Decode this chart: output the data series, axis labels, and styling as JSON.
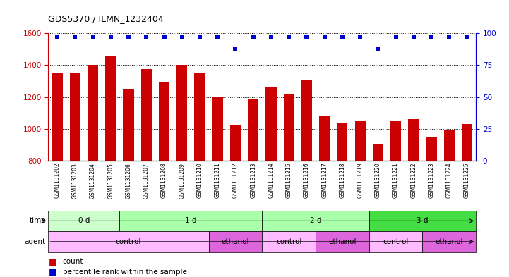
{
  "title": "GDS5370 / ILMN_1232404",
  "samples": [
    "GSM1131202",
    "GSM1131203",
    "GSM1131204",
    "GSM1131205",
    "GSM1131206",
    "GSM1131207",
    "GSM1131208",
    "GSM1131209",
    "GSM1131210",
    "GSM1131211",
    "GSM1131212",
    "GSM1131213",
    "GSM1131214",
    "GSM1131215",
    "GSM1131216",
    "GSM1131217",
    "GSM1131218",
    "GSM1131219",
    "GSM1131220",
    "GSM1131221",
    "GSM1131222",
    "GSM1131223",
    "GSM1131224",
    "GSM1131225"
  ],
  "bar_values": [
    1355,
    1355,
    1400,
    1460,
    1250,
    1375,
    1290,
    1400,
    1355,
    1200,
    1020,
    1190,
    1265,
    1215,
    1305,
    1085,
    1040,
    1050,
    905,
    1050,
    1060,
    950,
    990,
    1030
  ],
  "blue_dot_y": [
    97,
    97,
    97,
    97,
    97,
    97,
    97,
    97,
    97,
    97,
    88,
    97,
    97,
    97,
    97,
    97,
    97,
    97,
    88,
    97,
    97,
    97,
    97,
    97
  ],
  "bar_color": "#cc0000",
  "dot_color": "#0000cc",
  "ylim_left": [
    800,
    1600
  ],
  "ylim_right": [
    0,
    100
  ],
  "yticks_left": [
    800,
    1000,
    1200,
    1400,
    1600
  ],
  "yticks_right": [
    0,
    25,
    50,
    75,
    100
  ],
  "time_groups": [
    {
      "label": "0 d",
      "start": 0,
      "end": 4,
      "color": "#ccffcc"
    },
    {
      "label": "1 d",
      "start": 4,
      "end": 12,
      "color": "#aaffaa"
    },
    {
      "label": "2 d",
      "start": 12,
      "end": 18,
      "color": "#aaffaa"
    },
    {
      "label": "3 d",
      "start": 18,
      "end": 24,
      "color": "#44dd44"
    }
  ],
  "agent_groups": [
    {
      "label": "control",
      "start": 0,
      "end": 9,
      "color": "#ffbbff"
    },
    {
      "label": "ethanol",
      "start": 9,
      "end": 12,
      "color": "#dd66dd"
    },
    {
      "label": "control",
      "start": 12,
      "end": 15,
      "color": "#ffbbff"
    },
    {
      "label": "ethanol",
      "start": 15,
      "end": 18,
      "color": "#dd66dd"
    },
    {
      "label": "control",
      "start": 18,
      "end": 21,
      "color": "#ffbbff"
    },
    {
      "label": "ethanol",
      "start": 21,
      "end": 24,
      "color": "#dd66dd"
    }
  ],
  "bg_color": "#ffffff",
  "tick_color_left": "#cc0000",
  "tick_color_right": "#0000cc"
}
